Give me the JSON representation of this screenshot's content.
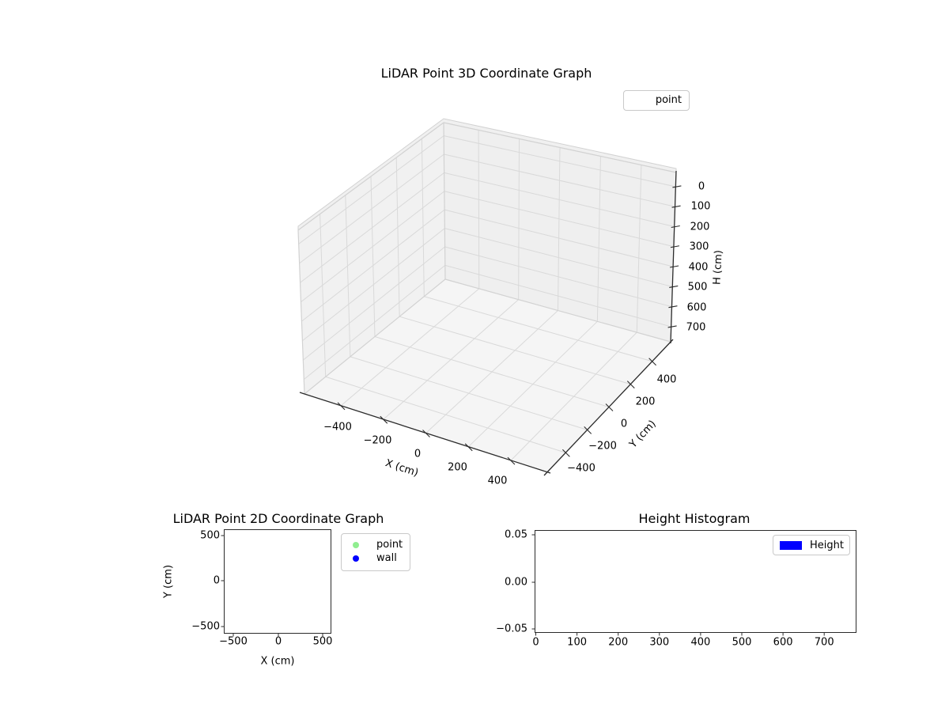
{
  "plot3d": {
    "title": "LiDAR Point 3D Coordinate Graph",
    "xlabel": "X (cm)",
    "ylabel": "Y (cm)",
    "zlabel": "H (cm)",
    "x_tick_labels": [
      "−400",
      "−200",
      "0",
      "200",
      "400"
    ],
    "y_tick_labels": [
      "−400",
      "−200",
      "0",
      "200",
      "400"
    ],
    "z_tick_labels": [
      "0",
      "100",
      "200",
      "300",
      "400",
      "500",
      "600",
      "700"
    ],
    "legend_items": [
      {
        "label": "point",
        "marker": "none"
      }
    ]
  },
  "plot2d": {
    "title": "LiDAR Point 2D Coordinate Graph",
    "xlabel": "X (cm)",
    "ylabel": "Y (cm)",
    "x_tick_labels": [
      "−500",
      "0",
      "500"
    ],
    "y_tick_labels": [
      "500",
      "0",
      "−500"
    ],
    "legend_items": [
      {
        "label": "point",
        "color": "#90ee90"
      },
      {
        "label": "wall",
        "color": "#0000ff"
      }
    ]
  },
  "hist": {
    "title": "Height Histogram",
    "x_tick_labels": [
      "0",
      "100",
      "200",
      "300",
      "400",
      "500",
      "600",
      "700"
    ],
    "y_tick_labels": [
      "0.05",
      "0.00",
      "−0.05"
    ],
    "legend_items": [
      {
        "label": "Height",
        "color": "#0000ff"
      }
    ]
  },
  "chart_data": [
    {
      "type": "scatter",
      "projection": "3d",
      "title": "LiDAR Point 3D Coordinate Graph",
      "xlabel": "X (cm)",
      "ylabel": "Y (cm)",
      "zlabel": "H (cm)",
      "xlim": [
        -500,
        500
      ],
      "ylim": [
        -500,
        500
      ],
      "zlim": [
        0,
        750
      ],
      "zaxis_inverted": true,
      "x_ticks": [
        -400,
        -200,
        0,
        200,
        400
      ],
      "y_ticks": [
        -400,
        -200,
        0,
        200,
        400
      ],
      "z_ticks": [
        0,
        100,
        200,
        300,
        400,
        500,
        600,
        700
      ],
      "grid": true,
      "legend_position": "upper right (outside axes, figure top right)",
      "series": [
        {
          "name": "point",
          "points": []
        }
      ]
    },
    {
      "type": "scatter",
      "title": "LiDAR Point 2D Coordinate Graph",
      "xlabel": "X (cm)",
      "ylabel": "Y (cm)",
      "xlim": [
        -600,
        600
      ],
      "ylim": [
        -600,
        600
      ],
      "x_ticks": [
        -500,
        0,
        500
      ],
      "y_ticks": [
        -500,
        0,
        500
      ],
      "grid": false,
      "legend_position": "outside right",
      "series": [
        {
          "name": "point",
          "color": "#90ee90",
          "points": []
        },
        {
          "name": "wall",
          "color": "#0000ff",
          "points": []
        }
      ]
    },
    {
      "type": "bar",
      "subtype": "histogram",
      "title": "Height Histogram",
      "xlabel": "",
      "ylabel": "",
      "xlim": [
        0,
        780
      ],
      "ylim": [
        -0.052,
        0.052
      ],
      "x_ticks": [
        0,
        100,
        200,
        300,
        400,
        500,
        600,
        700
      ],
      "y_ticks": [
        -0.05,
        0.0,
        0.05
      ],
      "grid": false,
      "legend_position": "upper right",
      "series": [
        {
          "name": "Height",
          "color": "#0000ff",
          "values": []
        }
      ]
    }
  ]
}
